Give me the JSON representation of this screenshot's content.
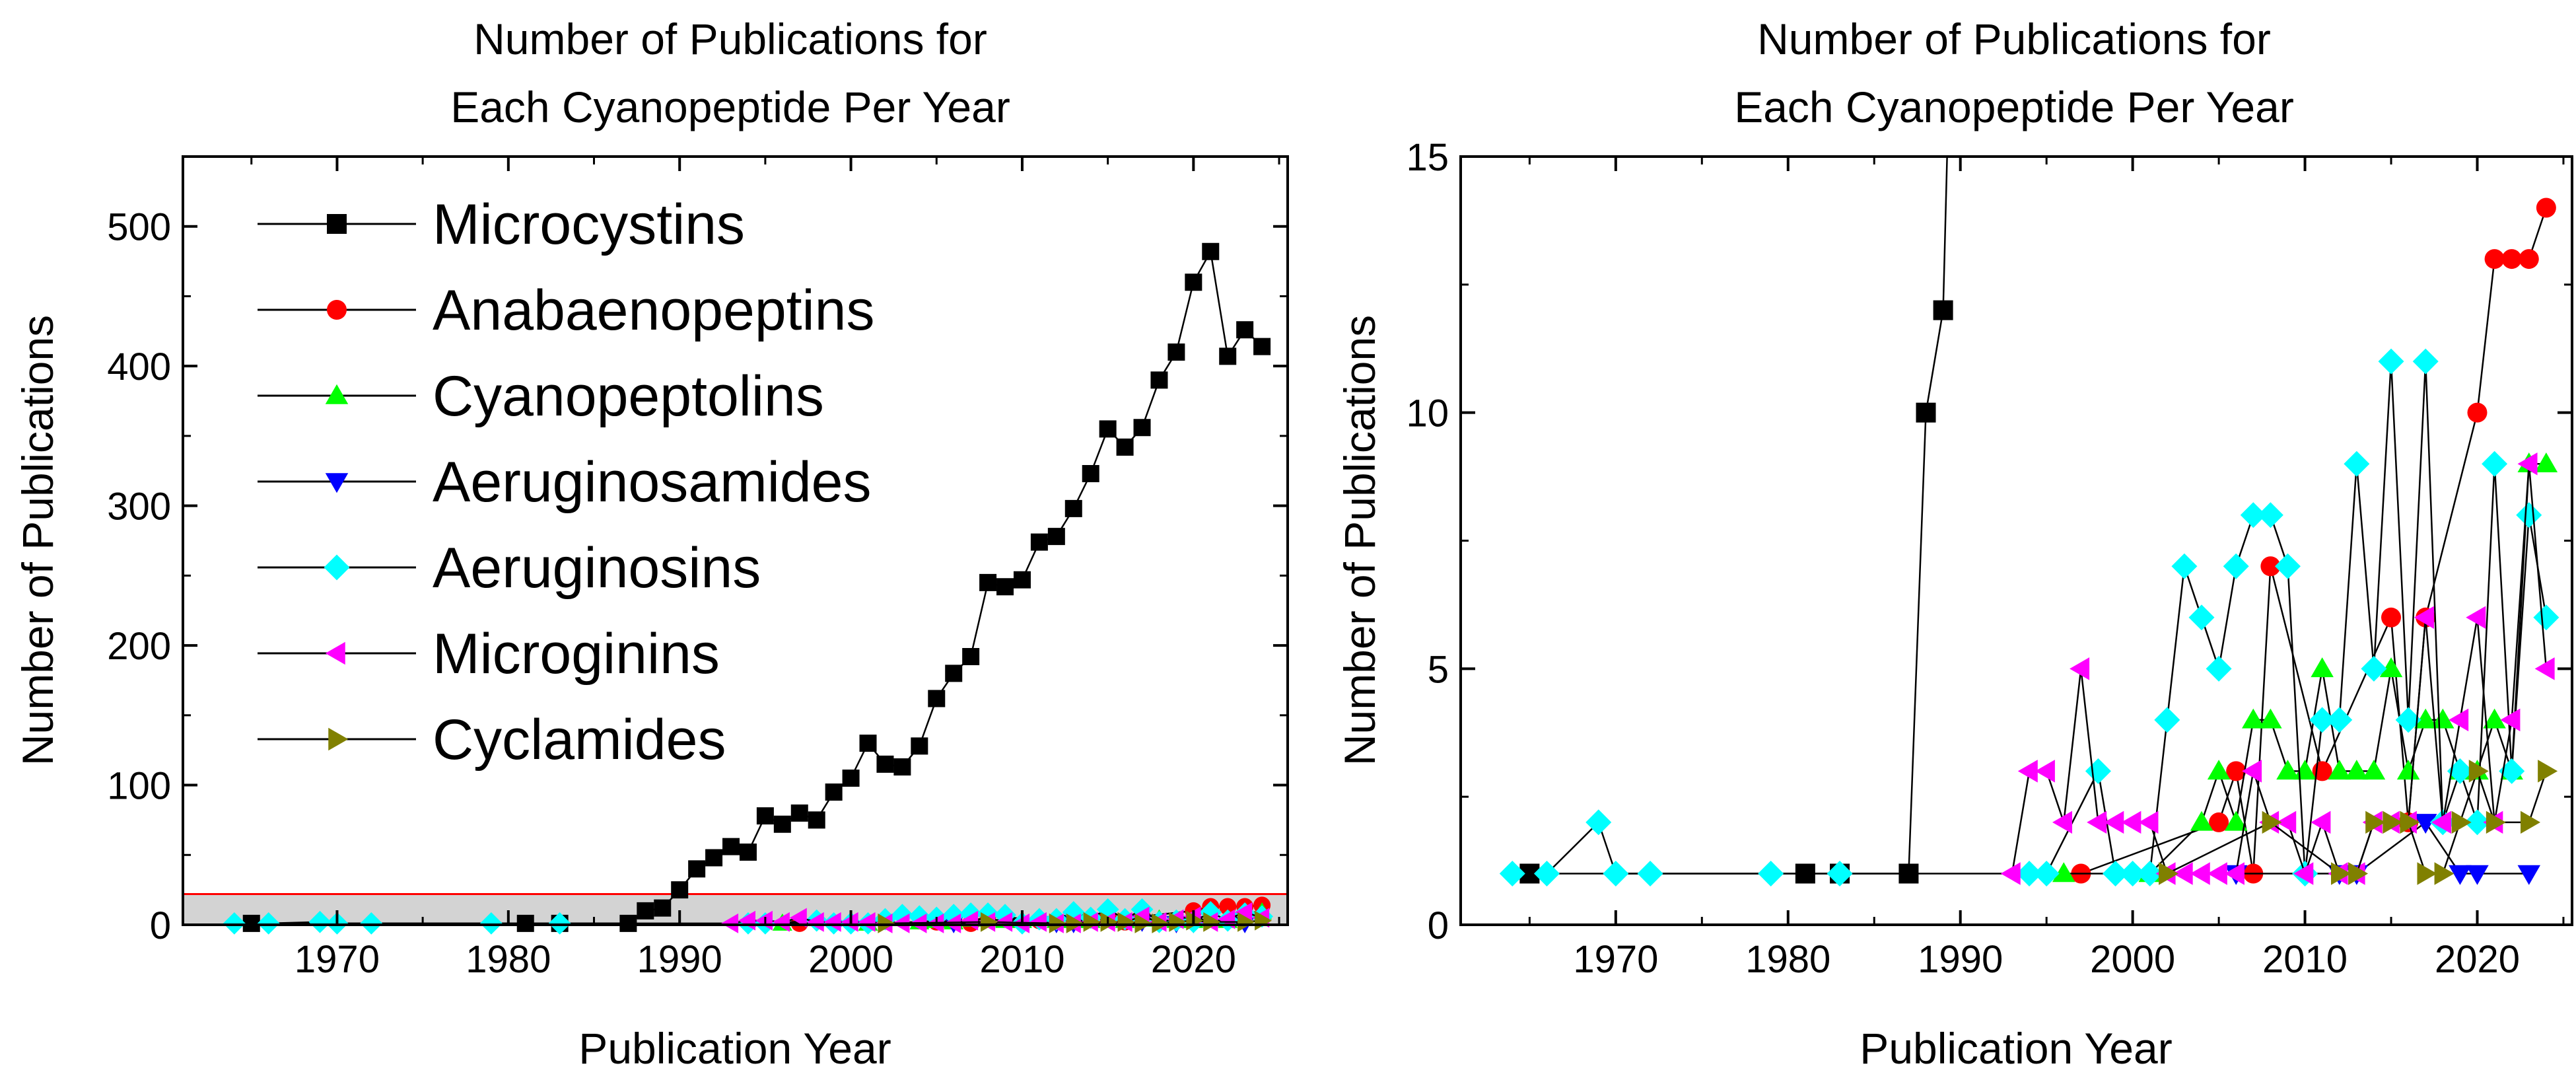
{
  "chart_data": [
    {
      "type": "line",
      "title_lines": [
        "Number of Publications for",
        "Each Cyanopeptide Per Year"
      ],
      "xlabel": "Publication Year",
      "ylabel": "Number of Publications",
      "xlim": [
        1961,
        2025.5
      ],
      "ylim": [
        0,
        550
      ],
      "xticks": [
        1970,
        1980,
        1990,
        2000,
        2010,
        2020
      ],
      "yticks": [
        0,
        100,
        200,
        300,
        400,
        500
      ],
      "legend_position": "top-left",
      "highlight_band": {
        "y_max": 22,
        "fill": "#d3d3d3",
        "line_color": "#ff0000"
      }
    },
    {
      "type": "line",
      "title_lines": [
        "Number of Publications for",
        "Each Cyanopeptide Per Year"
      ],
      "xlabel": "Publication Year",
      "ylabel": "Number of Publications",
      "xlim": [
        1961,
        2025.5
      ],
      "ylim": [
        0,
        15
      ],
      "xticks": [
        1970,
        1980,
        1990,
        2000,
        2010,
        2020
      ],
      "yticks": [
        0,
        5,
        10,
        15
      ],
      "legend_position": "none"
    }
  ],
  "series": [
    {
      "name": "Microcystins",
      "color": "#000000",
      "marker": "square",
      "x": [
        1965,
        1981,
        1983,
        1987,
        1988,
        1989,
        1990,
        1991,
        1992,
        1993,
        1994,
        1995,
        1996,
        1997,
        1998,
        1999,
        2000,
        2001,
        2002,
        2003,
        2004,
        2005,
        2006,
        2007,
        2008,
        2009,
        2010,
        2011,
        2012,
        2013,
        2014,
        2015,
        2016,
        2017,
        2018,
        2019,
        2020,
        2021,
        2022,
        2023,
        2024
      ],
      "y": [
        1,
        1,
        1,
        1,
        10,
        12,
        25,
        40,
        48,
        56,
        52,
        78,
        72,
        80,
        75,
        95,
        105,
        130,
        115,
        113,
        128,
        162,
        180,
        192,
        245,
        242,
        247,
        274,
        278,
        298,
        323,
        355,
        342,
        356,
        390,
        410,
        460,
        482,
        407,
        426,
        414
      ]
    },
    {
      "name": "Anabaenopeptins",
      "color": "#ff0000",
      "marker": "circle",
      "x": [
        1997,
        2005,
        2006,
        2007,
        2008,
        2011,
        2015,
        2016,
        2017,
        2020,
        2021,
        2022,
        2023,
        2024
      ],
      "y": [
        1,
        2,
        3,
        1,
        7,
        3,
        6,
        2,
        6,
        10,
        13,
        13,
        13,
        14
      ]
    },
    {
      "name": "Cyanopeptolins",
      "color": "#00ff00",
      "marker": "triangle-up",
      "x": [
        1996,
        2001,
        2004,
        2005,
        2006,
        2007,
        2008,
        2009,
        2010,
        2011,
        2012,
        2013,
        2014,
        2015,
        2016,
        2017,
        2018,
        2019,
        2020,
        2021,
        2022,
        2023,
        2024
      ],
      "y": [
        1,
        1,
        2,
        3,
        2,
        4,
        4,
        3,
        3,
        5,
        3,
        3,
        3,
        5,
        3,
        4,
        4,
        3,
        3,
        4,
        3,
        9,
        9
      ]
    },
    {
      "name": "Aeruginosamides",
      "color": "#0000ff",
      "marker": "triangle-down",
      "x": [
        2006,
        2012,
        2013,
        2017,
        2019,
        2020,
        2023
      ],
      "y": [
        1,
        1,
        1,
        2,
        1,
        1,
        1
      ]
    },
    {
      "name": "Aeruginosins",
      "color": "#00ffff",
      "marker": "diamond",
      "x": [
        1964,
        1966,
        1969,
        1970,
        1972,
        1979,
        1983,
        1994,
        1995,
        1998,
        1999,
        2000,
        2001,
        2002,
        2003,
        2004,
        2005,
        2006,
        2007,
        2008,
        2009,
        2010,
        2011,
        2012,
        2013,
        2014,
        2015,
        2016,
        2017,
        2018,
        2019,
        2020,
        2021,
        2022,
        2023,
        2024
      ],
      "y": [
        1,
        1,
        2,
        1,
        1,
        1,
        1,
        1,
        1,
        3,
        1,
        1,
        1,
        4,
        7,
        6,
        5,
        7,
        8,
        8,
        7,
        1,
        4,
        4,
        9,
        5,
        11,
        4,
        11,
        2,
        3,
        2,
        9,
        3,
        8,
        6
      ]
    },
    {
      "name": "Microginins",
      "color": "#ff00ff",
      "marker": "triangle-left",
      "x": [
        1993,
        1994,
        1995,
        1996,
        1997,
        1998,
        1999,
        2000,
        2001,
        2002,
        2003,
        2004,
        2005,
        2006,
        2007,
        2008,
        2009,
        2010,
        2011,
        2012,
        2013,
        2014,
        2015,
        2016,
        2017,
        2018,
        2019,
        2020,
        2021,
        2022,
        2023,
        2024
      ],
      "y": [
        1,
        3,
        3,
        2,
        5,
        2,
        2,
        2,
        2,
        1,
        1,
        1,
        1,
        1,
        3,
        2,
        2,
        1,
        2,
        1,
        1,
        2,
        2,
        2,
        6,
        2,
        4,
        6,
        2,
        4,
        9,
        5
      ]
    },
    {
      "name": "Cyclamides",
      "color": "#808000",
      "marker": "triangle-right",
      "x": [
        2002,
        2008,
        2012,
        2013,
        2014,
        2015,
        2016,
        2017,
        2018,
        2019,
        2020,
        2021,
        2023,
        2024
      ],
      "y": [
        1,
        2,
        1,
        1,
        2,
        2,
        2,
        1,
        1,
        2,
        3,
        2,
        2,
        3
      ]
    }
  ]
}
